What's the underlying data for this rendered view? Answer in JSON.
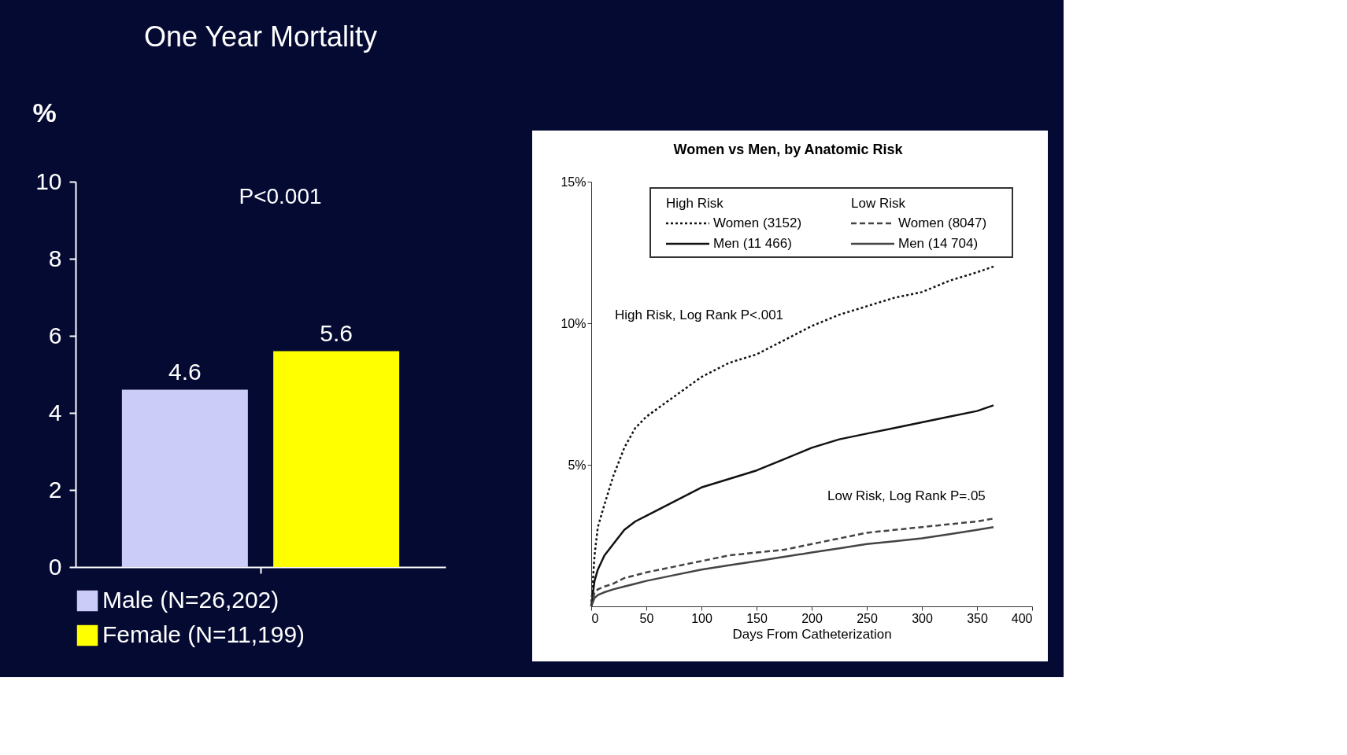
{
  "chart_data": [
    {
      "type": "bar",
      "title": "One Year Mortality",
      "ylabel": "%",
      "categories": [
        null
      ],
      "series": [
        {
          "name": "Male (N=26,202)",
          "color": "#ccccf8",
          "values": [
            4.6
          ]
        },
        {
          "name": "Female (N=11,199)",
          "color": "#ffff00",
          "values": [
            5.6
          ]
        }
      ],
      "ylim": [
        0,
        10
      ],
      "yticks": [
        0,
        2,
        4,
        6,
        8,
        10
      ],
      "data_labels": true,
      "legend": "bottom",
      "grid": false,
      "annotations": [
        "P<0.001"
      ]
    },
    {
      "type": "line",
      "title": "Women vs Men, by Anatomic Risk",
      "xlabel": "Days From Catheterization",
      "x": [
        0,
        3,
        6,
        12,
        20,
        30,
        40,
        50,
        75,
        100,
        125,
        150,
        175,
        200,
        225,
        250,
        275,
        300,
        325,
        350,
        365
      ],
      "series": [
        {
          "name": "Women (3152)",
          "color": "#111111",
          "line_style": "dotted",
          "values": [
            0,
            1.8,
            2.8,
            3.6,
            4.6,
            5.6,
            6.3,
            6.7,
            7.4,
            8.1,
            8.6,
            8.9,
            9.4,
            9.9,
            10.3,
            10.6,
            10.9,
            11.1,
            11.5,
            11.8,
            12.0
          ]
        },
        {
          "name": "Men (11 466)",
          "color": "#111111",
          "line_style": "solid",
          "values": [
            0,
            0.9,
            1.3,
            1.8,
            2.2,
            2.7,
            3.0,
            3.2,
            3.7,
            4.2,
            4.5,
            4.8,
            5.2,
            5.6,
            5.9,
            6.1,
            6.3,
            6.5,
            6.7,
            6.9,
            7.1
          ]
        },
        {
          "name": "Women (8047)",
          "color": "#444444",
          "line_style": "dashed",
          "values": [
            0,
            0.5,
            0.6,
            0.7,
            0.8,
            1.0,
            1.1,
            1.2,
            1.4,
            1.6,
            1.8,
            1.9,
            2.0,
            2.2,
            2.4,
            2.6,
            2.7,
            2.8,
            2.9,
            3.0,
            3.1
          ]
        },
        {
          "name": "Men (14 704)",
          "color": "#444444",
          "line_style": "solid",
          "values": [
            0,
            0.3,
            0.4,
            0.5,
            0.6,
            0.7,
            0.8,
            0.9,
            1.1,
            1.3,
            1.45,
            1.6,
            1.75,
            1.9,
            2.05,
            2.2,
            2.3,
            2.4,
            2.55,
            2.7,
            2.8
          ]
        }
      ],
      "xlim": [
        0,
        400
      ],
      "xticks": [
        0,
        50,
        100,
        150,
        200,
        250,
        300,
        350,
        400
      ],
      "ylim": [
        0,
        15
      ],
      "yticks": [
        {
          "value": 5,
          "label": "5%"
        },
        {
          "value": 10,
          "label": "10%"
        },
        {
          "value": 15,
          "label": "15%"
        }
      ],
      "legend": "top",
      "grid": false,
      "annotations": [
        "High Risk",
        "Low Risk",
        "High Risk, Log Rank P<.001",
        "Low Risk, Log Rank P=.05"
      ]
    }
  ]
}
